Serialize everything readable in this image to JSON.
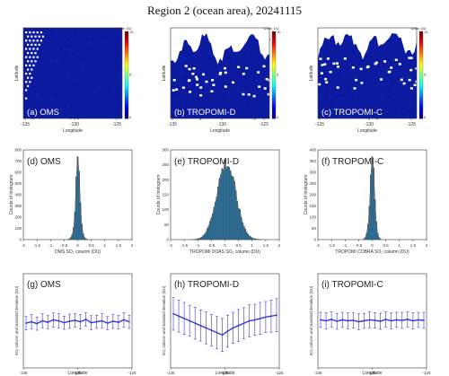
{
  "page": {
    "title": "Region 2 (ocean area), 20241115"
  },
  "chart_data": [
    {
      "type": "heatmap",
      "panel_label": "(a) OMS",
      "xlabel": "Longitude",
      "ylabel": "Latitude",
      "x_ticks": [
        "-135",
        "-130",
        "-125"
      ],
      "colorbar_title": "Units: DU",
      "colorbar_ticks": [
        "10",
        "5",
        "0"
      ],
      "colorscale": "jet",
      "fill_value": 0,
      "missing_region": "diagonal dotted band along the upper-left edge",
      "colors": {
        "background": "#0c1aa0",
        "missing": "#ffffff"
      }
    },
    {
      "type": "heatmap",
      "panel_label": "(b) TROPOMI-D",
      "xlabel": "Longitude",
      "ylabel": "Latitude",
      "x_ticks": [
        "-135",
        "-130",
        "-125"
      ],
      "colorbar_title": "Units: DU",
      "colorbar_ticks": [
        "10",
        "5",
        "0"
      ],
      "colorscale": "jet",
      "fill_value": 0,
      "missing_region": "large irregular blank area across the upper third",
      "colors": {
        "background": "#0c1aa0",
        "missing": "#ffffff"
      }
    },
    {
      "type": "heatmap",
      "panel_label": "(c) TROPOMI-C",
      "xlabel": "Longitude",
      "ylabel": "Latitude",
      "x_ticks": [
        "-135",
        "-130",
        "-125"
      ],
      "colorbar_title": "Units: DU",
      "colorbar_ticks": [
        "10",
        "5",
        "0"
      ],
      "colorscale": "jet",
      "fill_value": 0,
      "missing_region": "irregular blank area across the upper third",
      "colors": {
        "background": "#0c1aa0",
        "missing": "#ffffff"
      }
    },
    {
      "type": "bar",
      "panel_label": "(d) OMS",
      "xlabel": "OMS SO₂ column (DU)",
      "ylabel": "Counts of histogram",
      "xlim": [
        -2,
        2
      ],
      "ylim": [
        0,
        800
      ],
      "x_ticks": [
        "-2",
        "-1.5",
        "-1",
        "-0.5",
        "0",
        "0.5",
        "1",
        "1.5",
        "2"
      ],
      "y_ticks": [
        "0",
        "100",
        "200",
        "300",
        "400",
        "500",
        "600",
        "700",
        "800"
      ],
      "bin_width": 0.05,
      "bin_centers": [
        -0.35,
        -0.3,
        -0.25,
        -0.2,
        -0.15,
        -0.1,
        -0.05,
        0,
        0.05,
        0.1,
        0.15,
        0.2,
        0.25,
        0.3,
        0.35
      ],
      "counts": [
        3,
        8,
        20,
        45,
        110,
        250,
        560,
        740,
        610,
        330,
        140,
        55,
        20,
        8,
        3
      ],
      "colors": {
        "bar": "#2f6f95",
        "edge": "#1b4f6f"
      }
    },
    {
      "type": "bar",
      "panel_label": "(e) TROPOMI-D",
      "xlabel": "TROPOMI DOAS SO₂ column (DU)",
      "ylabel": "Counts of histogram",
      "xlim": [
        -2,
        2
      ],
      "ylim": [
        0,
        300
      ],
      "x_ticks": [
        "-2",
        "-1.5",
        "-1",
        "-0.5",
        "0",
        "0.5",
        "1",
        "1.5",
        "2"
      ],
      "y_ticks": [
        "0",
        "50",
        "100",
        "150",
        "200",
        "250",
        "300"
      ],
      "bin_width": 0.05,
      "mean": 0.05,
      "std": 0.35,
      "peak_count": 255,
      "colors": {
        "bar": "#2f6f95",
        "edge": "#1b4f6f"
      }
    },
    {
      "type": "bar",
      "panel_label": "(f) TROPOMI-C",
      "xlabel": "TROPOMI COBRA SO₂ column (DU)",
      "ylabel": "Counts of histogram",
      "xlim": [
        -2,
        2
      ],
      "ylim": [
        0,
        400
      ],
      "x_ticks": [
        "-2",
        "-1.5",
        "-1",
        "-0.5",
        "0",
        "0.5",
        "1",
        "1.5",
        "2"
      ],
      "y_ticks": [
        "0",
        "50",
        "100",
        "150",
        "200",
        "250",
        "300",
        "350",
        "400"
      ],
      "bin_width": 0.05,
      "bin_centers": [
        -0.3,
        -0.25,
        -0.2,
        -0.15,
        -0.1,
        -0.05,
        0,
        0.05,
        0.1,
        0.15,
        0.2,
        0.25,
        0.3
      ],
      "counts": [
        4,
        10,
        30,
        70,
        150,
        290,
        370,
        320,
        180,
        80,
        30,
        10,
        4
      ],
      "colors": {
        "bar": "#2f6f95",
        "edge": "#1b4f6f"
      }
    },
    {
      "type": "line",
      "panel_label": "(g) OMS",
      "xlabel": "Longitude",
      "ylabel": "SO₂ column and standard deviation (DU)",
      "xlim": [
        -135,
        -125
      ],
      "ylim": [
        -1,
        1
      ],
      "x_ticks": [
        "-135",
        "-130",
        "-125"
      ],
      "x": [
        -134.75,
        -134.25,
        -133.75,
        -133.25,
        -132.75,
        -132.25,
        -131.75,
        -131.25,
        -130.75,
        -130.25,
        -129.75,
        -129.25,
        -128.75,
        -128.25,
        -127.75,
        -127.25,
        -126.75,
        -126.25,
        -125.75,
        -125.25
      ],
      "y": [
        -0.05,
        -0.02,
        -0.06,
        0.0,
        -0.03,
        0.02,
        0.0,
        -0.04,
        -0.01,
        0.01,
        -0.02,
        0.03,
        -0.04,
        -0.02,
        0.0,
        -0.05,
        -0.01,
        -0.03,
        0.02,
        -0.02
      ],
      "std": [
        0.14,
        0.15,
        0.14,
        0.15,
        0.14,
        0.15,
        0.15,
        0.14,
        0.15,
        0.14,
        0.15,
        0.14,
        0.15,
        0.14,
        0.15,
        0.14,
        0.15,
        0.14,
        0.15,
        0.14
      ],
      "colors": {
        "line": "#3a39d6"
      }
    },
    {
      "type": "line",
      "panel_label": "(h) TROPOMI-D",
      "xlabel": "Longitude",
      "ylabel": "SO₂ column and standard deviation (DU)",
      "xlim": [
        -135,
        -125
      ],
      "ylim": [
        -1,
        1
      ],
      "x_ticks": [
        "-135",
        "-130",
        "-125"
      ],
      "x": [
        -134.75,
        -134.25,
        -133.75,
        -133.25,
        -132.75,
        -132.25,
        -131.75,
        -131.25,
        -130.75,
        -130.25,
        -129.75,
        -129.25,
        -128.75,
        -128.25,
        -127.75,
        -127.25,
        -126.75,
        -126.25,
        -125.75,
        -125.25
      ],
      "y": [
        0.15,
        0.1,
        0.05,
        0.0,
        -0.05,
        -0.1,
        -0.15,
        -0.2,
        -0.25,
        -0.3,
        -0.22,
        -0.15,
        -0.1,
        -0.05,
        0.0,
        0.02,
        0.05,
        0.08,
        0.1,
        0.12
      ],
      "std": [
        0.35,
        0.34,
        0.34,
        0.33,
        0.34,
        0.33,
        0.34,
        0.33,
        0.34,
        0.35,
        0.34,
        0.33,
        0.34,
        0.33,
        0.34,
        0.33,
        0.34,
        0.33,
        0.34,
        0.35
      ],
      "colors": {
        "line": "#3a39d6"
      }
    },
    {
      "type": "line",
      "panel_label": "(i) TROPOMI-C",
      "xlabel": "Longitude",
      "ylabel": "SO₂ column and standard deviation (DU)",
      "xlim": [
        -135,
        -125
      ],
      "ylim": [
        -1,
        1
      ],
      "x_ticks": [
        "-135",
        "-130",
        "-125"
      ],
      "x": [
        -134.75,
        -134.25,
        -133.75,
        -133.25,
        -132.75,
        -132.25,
        -131.75,
        -131.25,
        -130.75,
        -130.25,
        -129.75,
        -129.25,
        -128.75,
        -128.25,
        -127.75,
        -127.25,
        -126.75,
        -126.25,
        -125.75,
        -125.25
      ],
      "y": [
        0.02,
        0.0,
        0.03,
        -0.01,
        0.02,
        0.0,
        0.01,
        -0.02,
        0.0,
        0.02,
        0.01,
        -0.01,
        0.03,
        0.0,
        0.02,
        0.01,
        0.03,
        0.0,
        0.02,
        0.01
      ],
      "std": [
        0.16,
        0.17,
        0.16,
        0.17,
        0.16,
        0.17,
        0.16,
        0.17,
        0.16,
        0.17,
        0.16,
        0.17,
        0.16,
        0.17,
        0.16,
        0.17,
        0.16,
        0.17,
        0.16,
        0.17
      ],
      "colors": {
        "line": "#3a39d6"
      }
    }
  ]
}
